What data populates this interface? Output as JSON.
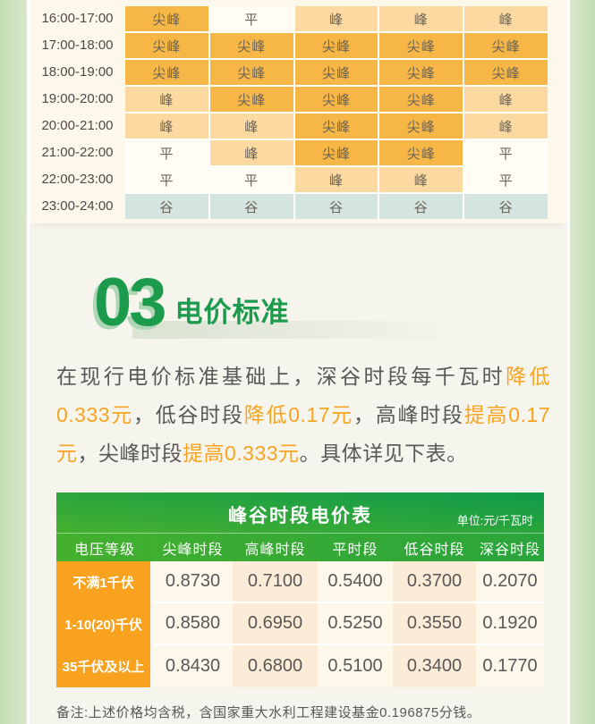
{
  "colors": {
    "page_bg": "#f5f4ed",
    "side_green": "#cfe4c3",
    "card_cream": "#fdf8e9",
    "cell_sharp_peak": "#f6b746",
    "cell_peak": "#fbd9a0",
    "cell_flat": "#fffdf4",
    "cell_valley": "#d4e4e0",
    "accent_green": "#1d9b4c",
    "highlight_orange": "#f7a421",
    "table_orange": "#f8a21f",
    "col_cream": "#fdf8ea",
    "col_peach": "#fbecd7"
  },
  "schedule_table": {
    "rows": [
      {
        "time": "16:00-17:00",
        "cells": [
          {
            "label": "尖峰",
            "type": "sharp"
          },
          {
            "label": "平",
            "type": "flat"
          },
          {
            "label": "峰",
            "type": "peak"
          },
          {
            "label": "峰",
            "type": "peak"
          },
          {
            "label": "峰",
            "type": "peak"
          }
        ]
      },
      {
        "time": "17:00-18:00",
        "cells": [
          {
            "label": "尖峰",
            "type": "sharp"
          },
          {
            "label": "尖峰",
            "type": "sharp"
          },
          {
            "label": "尖峰",
            "type": "sharp"
          },
          {
            "label": "尖峰",
            "type": "sharp"
          },
          {
            "label": "尖峰",
            "type": "sharp"
          }
        ]
      },
      {
        "time": "18:00-19:00",
        "cells": [
          {
            "label": "尖峰",
            "type": "sharp"
          },
          {
            "label": "尖峰",
            "type": "sharp"
          },
          {
            "label": "尖峰",
            "type": "sharp"
          },
          {
            "label": "尖峰",
            "type": "sharp"
          },
          {
            "label": "尖峰",
            "type": "sharp"
          }
        ]
      },
      {
        "time": "19:00-20:00",
        "cells": [
          {
            "label": "峰",
            "type": "peak"
          },
          {
            "label": "尖峰",
            "type": "sharp"
          },
          {
            "label": "尖峰",
            "type": "sharp"
          },
          {
            "label": "尖峰",
            "type": "sharp"
          },
          {
            "label": "峰",
            "type": "peak"
          }
        ]
      },
      {
        "time": "20:00-21:00",
        "cells": [
          {
            "label": "峰",
            "type": "peak"
          },
          {
            "label": "峰",
            "type": "peak"
          },
          {
            "label": "尖峰",
            "type": "sharp"
          },
          {
            "label": "尖峰",
            "type": "sharp"
          },
          {
            "label": "峰",
            "type": "peak"
          }
        ]
      },
      {
        "time": "21:00-22:00",
        "cells": [
          {
            "label": "平",
            "type": "flat"
          },
          {
            "label": "峰",
            "type": "peak"
          },
          {
            "label": "尖峰",
            "type": "sharp"
          },
          {
            "label": "尖峰",
            "type": "sharp"
          },
          {
            "label": "平",
            "type": "flat"
          }
        ]
      },
      {
        "time": "22:00-23:00",
        "cells": [
          {
            "label": "平",
            "type": "flat"
          },
          {
            "label": "平",
            "type": "flat"
          },
          {
            "label": "峰",
            "type": "peak"
          },
          {
            "label": "峰",
            "type": "peak"
          },
          {
            "label": "平",
            "type": "flat"
          }
        ]
      },
      {
        "time": "23:00-24:00",
        "cells": [
          {
            "label": "谷",
            "type": "valley"
          },
          {
            "label": "谷",
            "type": "valley"
          },
          {
            "label": "谷",
            "type": "valley"
          },
          {
            "label": "谷",
            "type": "valley"
          },
          {
            "label": "谷",
            "type": "valley"
          }
        ]
      }
    ]
  },
  "section": {
    "number": "03",
    "title": "电价标准"
  },
  "paragraph": {
    "segments": [
      {
        "text": "在现行电价标准基础上，深谷时段每千瓦时",
        "highlight": false
      },
      {
        "text": "降低0.333元",
        "highlight": true
      },
      {
        "text": "，低谷时段",
        "highlight": false
      },
      {
        "text": "降低0.17元",
        "highlight": true
      },
      {
        "text": "，高峰时段",
        "highlight": false
      },
      {
        "text": "提高0.17元",
        "highlight": true
      },
      {
        "text": "，尖峰时段",
        "highlight": false
      },
      {
        "text": "提高0.333元",
        "highlight": true
      },
      {
        "text": "。具体详见下表。",
        "highlight": false
      }
    ]
  },
  "price_table": {
    "title": "峰谷时段电价表",
    "unit": "单位:元/千瓦时",
    "columns": [
      "电压等级",
      "尖峰时段",
      "高峰时段",
      "平时段",
      "低谷时段",
      "深谷时段"
    ],
    "rows": [
      {
        "label": "不满1千伏",
        "values": [
          "0.8730",
          "0.7100",
          "0.5400",
          "0.3700",
          "0.2070"
        ]
      },
      {
        "label": "1-10(20)千伏",
        "values": [
          "0.8580",
          "0.6950",
          "0.5250",
          "0.3550",
          "0.1920"
        ]
      },
      {
        "label": "35千伏及以上",
        "values": [
          "0.8430",
          "0.6800",
          "0.5100",
          "0.3400",
          "0.1770"
        ]
      }
    ]
  },
  "note": "备注:上述价格均含税，含国家重大水利工程建设基金0.196875分钱。"
}
